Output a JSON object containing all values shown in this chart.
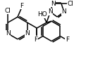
{
  "bg": "#ffffff",
  "lw": 1.1,
  "fs": 6.5,
  "fig_w": 1.59,
  "fig_h": 1.04,
  "dpi": 100,
  "xlim": [
    0,
    10
  ],
  "ylim": [
    0,
    6.5
  ]
}
